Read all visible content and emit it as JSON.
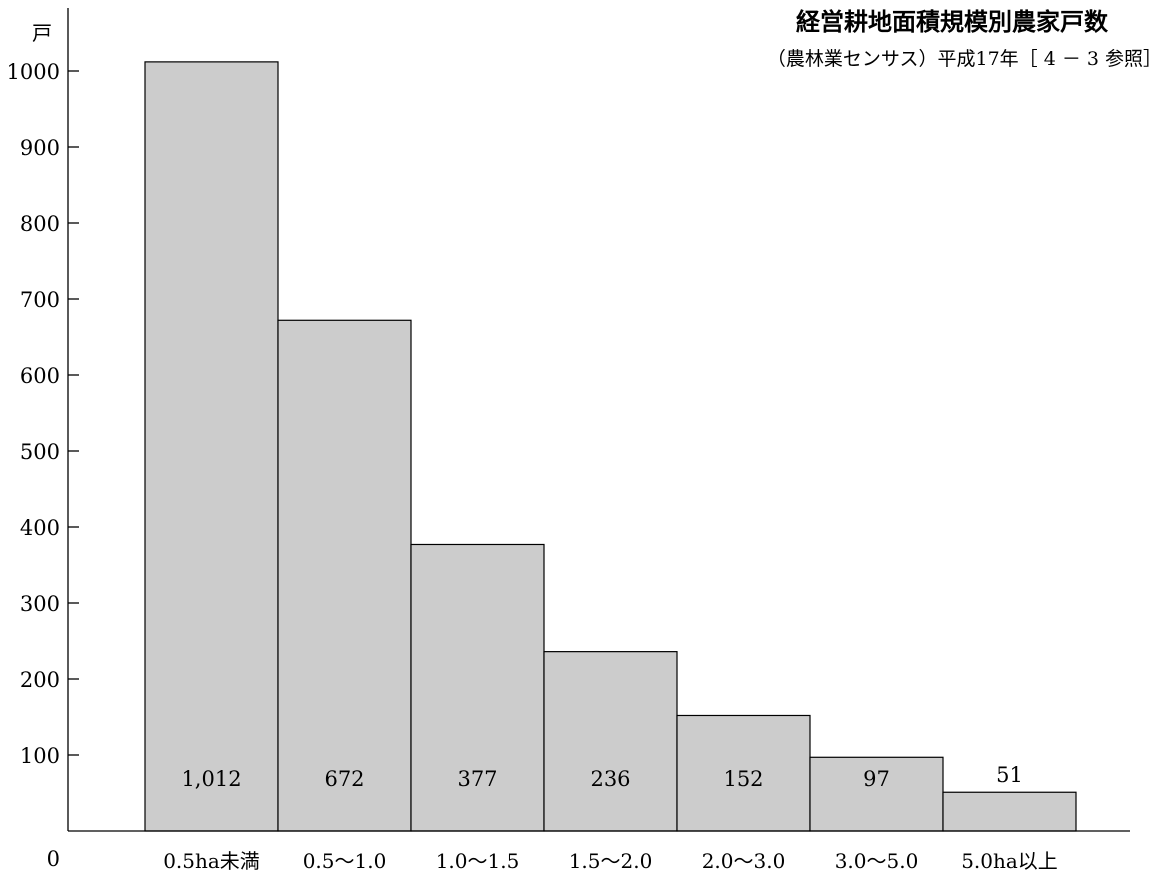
{
  "chart_data": {
    "type": "bar",
    "title": "経営耕地面積規模別農家戸数",
    "subtitle": "（農林業センサス）平成17年［ 4 － 3 参照］",
    "ylabel": "戸",
    "xlabel": "",
    "categories": [
      "0.5ha未満",
      "0.5～1.0",
      "1.0～1.5",
      "1.5～2.0",
      "2.0～3.0",
      "3.0～5.0",
      "5.0ha以上"
    ],
    "values": [
      1012,
      672,
      377,
      236,
      152,
      97,
      51
    ],
    "value_labels": [
      "1,012",
      "672",
      "377",
      "236",
      "152",
      "97",
      "51"
    ],
    "ylim": [
      0,
      1000
    ],
    "yticks": [
      0,
      100,
      200,
      300,
      400,
      500,
      600,
      700,
      800,
      900,
      1000
    ],
    "grid": false,
    "legend": "none",
    "colors": {
      "bar_fill": "#cccccc",
      "bar_stroke": "#000000",
      "axis": "#000000"
    }
  }
}
